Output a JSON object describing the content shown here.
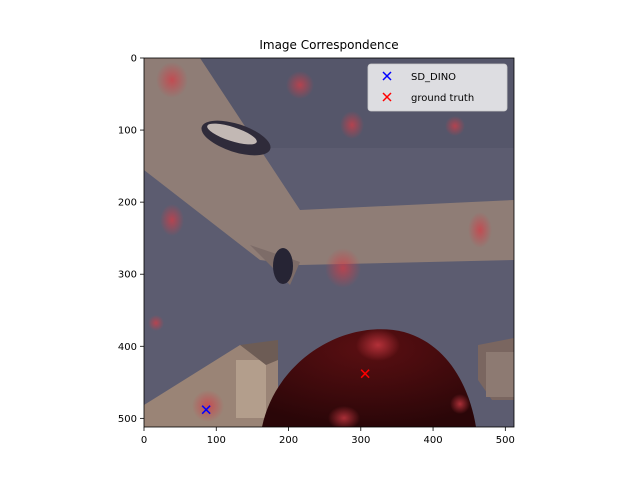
{
  "chart_data": {
    "type": "scatter",
    "title": "Image Correspondence",
    "xlabel": "",
    "ylabel": "",
    "xlim": [
      0,
      512
    ],
    "ylim": [
      512,
      0
    ],
    "y_inverted": true,
    "xticks": [
      0,
      100,
      200,
      300,
      400,
      500
    ],
    "yticks": [
      0,
      100,
      200,
      300,
      400,
      500
    ],
    "grid": false,
    "legend_position": "top-right",
    "background": "image",
    "series": [
      {
        "name": "SD_DINO",
        "marker": "x",
        "color": "#0000ff",
        "points": [
          {
            "x": 86,
            "y": 488
          }
        ]
      },
      {
        "name": "ground truth",
        "marker": "x",
        "color": "#ff0000",
        "points": [
          {
            "x": 306,
            "y": 438
          }
        ]
      }
    ]
  },
  "colors": {
    "image_base": "#5c5c70",
    "image_wall": "#8f7d76",
    "image_dark": "#3a0c0e",
    "heat": "#c8323c"
  }
}
